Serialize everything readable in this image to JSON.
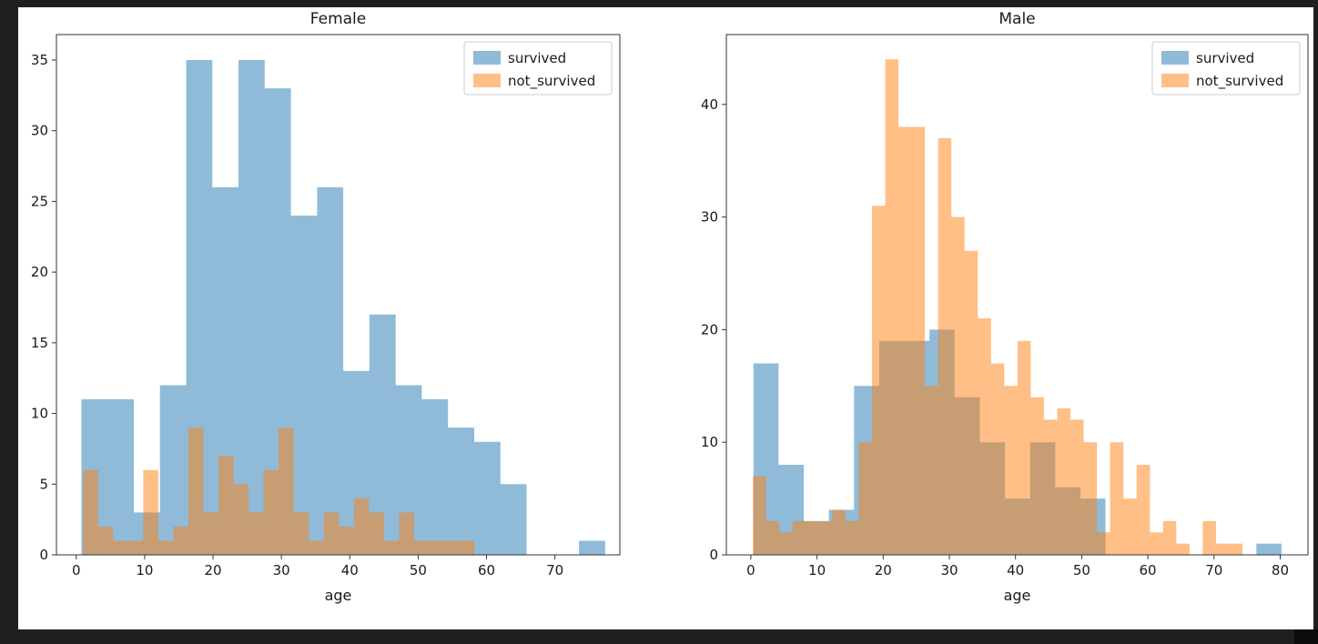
{
  "window": {
    "background_color": "#1f1f1f",
    "figure_background_color": "#ffffff"
  },
  "chart_data": [
    {
      "type": "histogram",
      "name": "female",
      "title": "Female",
      "xlabel": "age",
      "ylabel": "",
      "xlim": [
        -2.9,
        79.5
      ],
      "ylim": [
        0,
        36.8
      ],
      "x_ticks": [
        0,
        10,
        20,
        30,
        40,
        50,
        60,
        70
      ],
      "y_ticks": [
        0,
        5,
        10,
        15,
        20,
        25,
        30,
        35
      ],
      "grid": false,
      "legend": {
        "position": "upper right",
        "entries": [
          {
            "label": "survived",
            "color": "#1f77b4"
          },
          {
            "label": "not_survived",
            "color": "#ff7f0e"
          }
        ]
      },
      "series": [
        {
          "name": "survived",
          "color": "#1f77b4",
          "alpha": 0.5,
          "bin_start": 0.75,
          "bin_width": 3.83,
          "counts": [
            11,
            11,
            3,
            12,
            35,
            26,
            35,
            33,
            24,
            26,
            13,
            17,
            12,
            11,
            9,
            8,
            5,
            0,
            0,
            1
          ]
        },
        {
          "name": "not_survived",
          "color": "#ff7f0e",
          "alpha": 0.5,
          "bin_start": 1.0,
          "bin_width": 2.2,
          "counts": [
            6,
            2,
            1,
            1,
            6,
            1,
            2,
            9,
            3,
            7,
            5,
            3,
            6,
            9,
            3,
            1,
            3,
            2,
            4,
            3,
            1,
            3,
            1,
            1,
            1,
            1
          ]
        }
      ]
    },
    {
      "type": "histogram",
      "name": "male",
      "title": "Male",
      "xlabel": "age",
      "ylabel": "",
      "xlim": [
        -3.7,
        84.2
      ],
      "ylim": [
        0,
        46.2
      ],
      "x_ticks": [
        0,
        10,
        20,
        30,
        40,
        50,
        60,
        70,
        80
      ],
      "y_ticks": [
        0,
        10,
        20,
        30,
        40
      ],
      "grid": false,
      "legend": {
        "position": "upper right",
        "entries": [
          {
            "label": "survived",
            "color": "#1f77b4"
          },
          {
            "label": "not_survived",
            "color": "#ff7f0e"
          }
        ]
      },
      "series": [
        {
          "name": "survived",
          "color": "#1f77b4",
          "alpha": 0.5,
          "bin_start": 0.4,
          "bin_width": 3.8,
          "counts": [
            17,
            8,
            3,
            4,
            15,
            19,
            19,
            20,
            14,
            10,
            5,
            10,
            6,
            5,
            0,
            0,
            0,
            0,
            0,
            0,
            1
          ]
        },
        {
          "name": "not_survived",
          "color": "#ff7f0e",
          "alpha": 0.5,
          "bin_start": 0.3,
          "bin_width": 2.0,
          "counts": [
            7,
            3,
            2,
            3,
            3,
            3,
            4,
            3,
            10,
            31,
            44,
            38,
            38,
            15,
            37,
            30,
            27,
            21,
            17,
            15,
            19,
            14,
            12,
            13,
            12,
            10,
            2,
            10,
            5,
            8,
            2,
            3,
            1,
            0,
            3,
            1,
            1
          ]
        }
      ]
    }
  ],
  "style": {
    "spine_color": "#333333",
    "tick_color": "#333333",
    "legend_border_color": "#cccccc",
    "legend_background": "#ffffff"
  }
}
